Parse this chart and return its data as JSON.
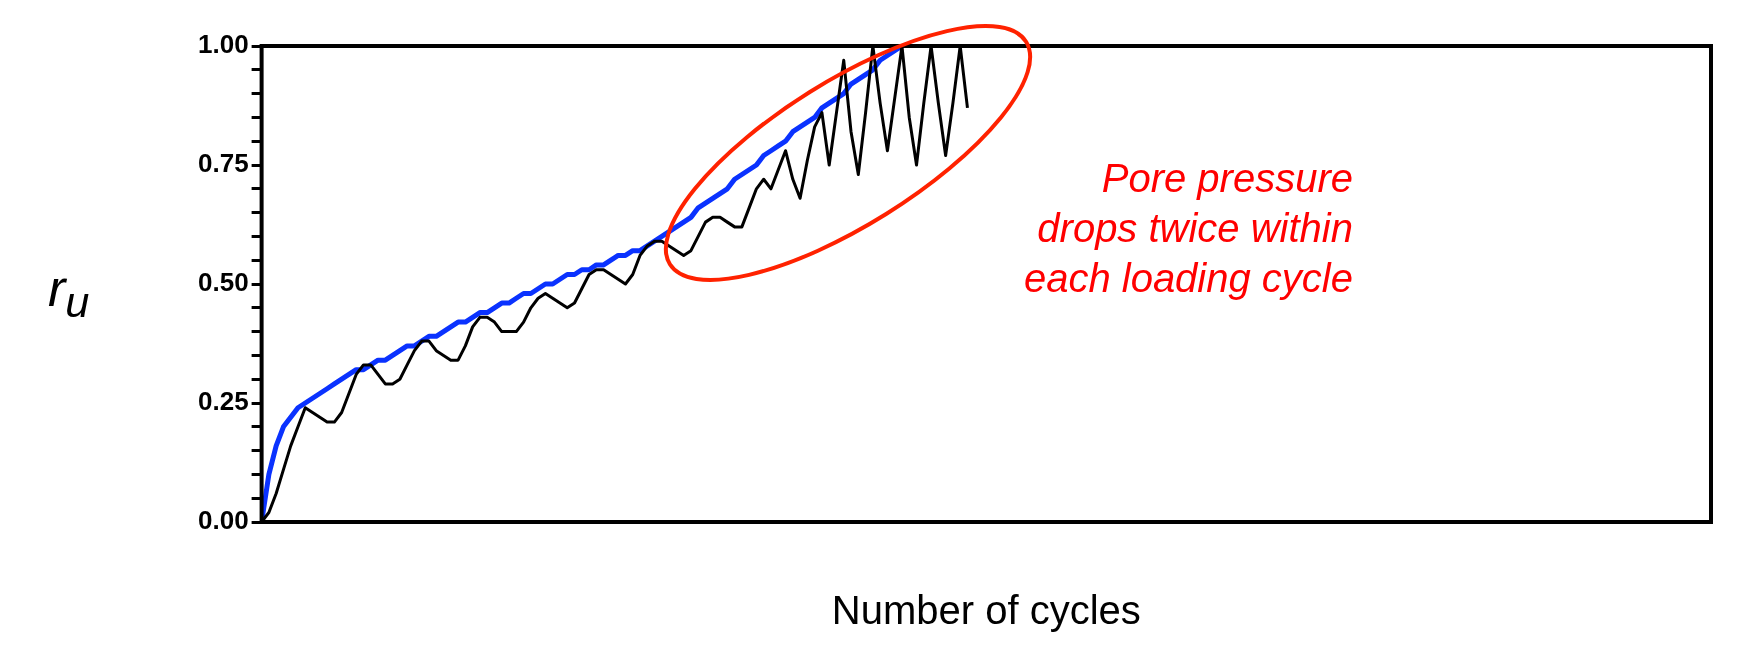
{
  "chart_data": {
    "type": "line",
    "xlabel": "Number of cycles",
    "ylabel": "r$_{u}$",
    "annotations": [
      "Pore pressure drops twice within each loading cycle"
    ],
    "categories": [
      null,
      null,
      null,
      null,
      null,
      null,
      null,
      null,
      null,
      null,
      null,
      null,
      null,
      null,
      null,
      null,
      null,
      null,
      null,
      null,
      null,
      null,
      null,
      null,
      null,
      null,
      null,
      null,
      null,
      null,
      null,
      null,
      null,
      null,
      null,
      null,
      null,
      null,
      null,
      null,
      null,
      null,
      null,
      null,
      null,
      null,
      null,
      null,
      null,
      null,
      null,
      null,
      null,
      null,
      null,
      null,
      null,
      null,
      null,
      null,
      null,
      null,
      null,
      null,
      null,
      null,
      null,
      null,
      null,
      null,
      null,
      null,
      null,
      null,
      null,
      null,
      null,
      null,
      null,
      null,
      null,
      null,
      null,
      null,
      null,
      null,
      null,
      null,
      null,
      null,
      null,
      null,
      null,
      null,
      null,
      null,
      null,
      null
    ],
    "series": [
      {
        "color": "#000000",
        "values": [
          0,
          0.02,
          0.06,
          0.11,
          0.16,
          0.2,
          0.24,
          0.23,
          0.22,
          0.21,
          0.21,
          0.23,
          0.27,
          0.31,
          0.33,
          0.33,
          0.31,
          0.29,
          0.29,
          0.3,
          0.33,
          0.36,
          0.38,
          0.38,
          0.36,
          0.35,
          0.34,
          0.34,
          0.37,
          0.41,
          0.43,
          0.43,
          0.42,
          0.4,
          0.4,
          0.4,
          0.42,
          0.45,
          0.47,
          0.48,
          0.47,
          0.46,
          0.45,
          0.46,
          0.49,
          0.52,
          0.53,
          0.53,
          0.52,
          0.51,
          0.5,
          0.52,
          0.56,
          0.58,
          0.59,
          0.59,
          0.58,
          0.57,
          0.56,
          0.57,
          0.6,
          0.63,
          0.64,
          0.64,
          0.63,
          0.62,
          0.62,
          0.66,
          0.7,
          0.72,
          0.7,
          0.74,
          0.78,
          0.72,
          0.68,
          0.76,
          0.83,
          0.86,
          0.75,
          0.86,
          0.97,
          0.82,
          0.73,
          0.86,
          1.0,
          0.88,
          0.78,
          0.89,
          1.0,
          0.85,
          0.75,
          0.88,
          1.0,
          0.88,
          0.77,
          0.88,
          1.0,
          0.87
        ]
      },
      {
        "color": "#0a32ff",
        "values": [
          0,
          0.1,
          0.16,
          0.2,
          0.22,
          0.24,
          0.25,
          0.26,
          0.27,
          0.28,
          0.29,
          0.3,
          0.31,
          0.32,
          0.32,
          0.33,
          0.34,
          0.34,
          0.35,
          0.36,
          0.37,
          0.37,
          0.38,
          0.39,
          0.39,
          0.4,
          0.41,
          0.42,
          0.42,
          0.43,
          0.44,
          0.44,
          0.45,
          0.46,
          0.46,
          0.47,
          0.48,
          0.48,
          0.49,
          0.5,
          0.5,
          0.51,
          0.52,
          0.52,
          0.53,
          0.53,
          0.54,
          0.54,
          0.55,
          0.56,
          0.56,
          0.57,
          0.57,
          0.58,
          0.59,
          0.6,
          0.61,
          0.62,
          0.63,
          0.64,
          0.66,
          0.67,
          0.68,
          0.69,
          0.7,
          0.72,
          0.73,
          0.74,
          0.75,
          0.77,
          0.78,
          0.79,
          0.8,
          0.82,
          0.83,
          0.84,
          0.85,
          0.87,
          0.88,
          0.89,
          0.9,
          0.92,
          0.93,
          0.94,
          0.95,
          0.97,
          0.98,
          0.99,
          1.0,
          null,
          null,
          null,
          null,
          null,
          null,
          null,
          null,
          null
        ]
      }
    ],
    "ylim": [
      0,
      1
    ],
    "yticks": [
      {
        "value": 0,
        "label": "0.00"
      },
      {
        "value": 0.05,
        "label": null
      },
      {
        "value": 0.1,
        "label": null
      },
      {
        "value": 0.15,
        "label": null
      },
      {
        "value": 0.2,
        "label": null
      },
      {
        "value": 0.25,
        "label": "0.25"
      },
      {
        "value": 0.3,
        "label": null
      },
      {
        "value": 0.35,
        "label": null
      },
      {
        "value": 0.4,
        "label": null
      },
      {
        "value": 0.45,
        "label": null
      },
      {
        "value": 0.5,
        "label": "0.50"
      },
      {
        "value": 0.55,
        "label": null
      },
      {
        "value": 0.6,
        "label": null
      },
      {
        "value": 0.65,
        "label": null
      },
      {
        "value": 0.7,
        "label": null
      },
      {
        "value": 0.75,
        "label": "0.75"
      },
      {
        "value": 0.8,
        "label": null
      },
      {
        "value": 0.85,
        "label": null
      },
      {
        "value": 0.9,
        "label": null
      },
      {
        "value": 0.95,
        "label": null
      },
      {
        "value": 1,
        "label": "1.00"
      }
    ]
  }
}
